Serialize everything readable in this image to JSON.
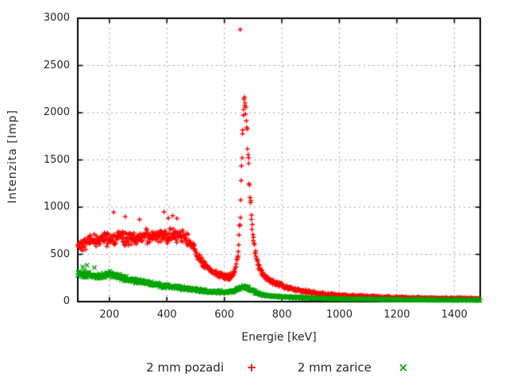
{
  "figure": {
    "background": "#ffffff"
  },
  "legend": {
    "items": [
      {
        "label": "2 mm pozadi",
        "marker": "+",
        "color": "#ff0000"
      },
      {
        "label": "2 mm zarice",
        "marker": "×",
        "color": "#00a400"
      }
    ]
  },
  "chart_data": {
    "type": "scatter",
    "title": "",
    "xlabel": "Energie [keV]",
    "ylabel": "Intenzita [Imp]",
    "xlim": [
      90,
      1490
    ],
    "ylim": [
      0,
      3000
    ],
    "xticks": [
      200,
      400,
      600,
      800,
      1000,
      1200,
      1400
    ],
    "yticks": [
      0,
      500,
      1000,
      1500,
      2000,
      2500,
      3000
    ],
    "grid": true,
    "grid_color": "#9a9a9a",
    "border_color": "#000000",
    "legend_position": "bottom-center",
    "series": [
      {
        "name": "2 mm pozadi",
        "marker": "+",
        "color": "#ff0000",
        "point_step_kev": 1.4,
        "seed": 42,
        "envelope_x_mean_spread": [
          [
            90,
            600,
            85
          ],
          [
            115,
            625,
            85
          ],
          [
            140,
            645,
            85
          ],
          [
            165,
            655,
            88
          ],
          [
            190,
            665,
            90
          ],
          [
            215,
            670,
            90
          ],
          [
            240,
            675,
            90
          ],
          [
            265,
            670,
            88
          ],
          [
            290,
            680,
            90
          ],
          [
            315,
            680,
            92
          ],
          [
            340,
            685,
            92
          ],
          [
            365,
            695,
            92
          ],
          [
            390,
            695,
            95
          ],
          [
            415,
            700,
            92
          ],
          [
            440,
            700,
            88
          ],
          [
            460,
            685,
            80
          ],
          [
            480,
            625,
            70
          ],
          [
            500,
            520,
            60
          ],
          [
            520,
            430,
            52
          ],
          [
            540,
            360,
            46
          ],
          [
            560,
            315,
            40
          ],
          [
            580,
            285,
            37
          ],
          [
            600,
            262,
            34
          ],
          [
            615,
            258,
            34
          ],
          [
            630,
            290,
            38
          ],
          [
            640,
            360,
            45
          ],
          [
            648,
            520,
            60
          ],
          [
            655,
            900,
            100
          ],
          [
            660,
            1400,
            130
          ],
          [
            665,
            1950,
            130
          ],
          [
            669,
            2130,
            100
          ],
          [
            673,
            2080,
            110
          ],
          [
            678,
            1850,
            120
          ],
          [
            684,
            1480,
            120
          ],
          [
            690,
            1120,
            100
          ],
          [
            697,
            800,
            80
          ],
          [
            705,
            560,
            65
          ],
          [
            715,
            410,
            50
          ],
          [
            728,
            315,
            42
          ],
          [
            744,
            258,
            36
          ],
          [
            762,
            220,
            32
          ],
          [
            782,
            190,
            28
          ],
          [
            805,
            162,
            26
          ],
          [
            835,
            135,
            24
          ],
          [
            870,
            112,
            22
          ],
          [
            910,
            93,
            20
          ],
          [
            955,
            78,
            18
          ],
          [
            1005,
            67,
            16
          ],
          [
            1060,
            58,
            15
          ],
          [
            1120,
            50,
            14
          ],
          [
            1185,
            44,
            13
          ],
          [
            1255,
            39,
            12
          ],
          [
            1330,
            35,
            12
          ],
          [
            1410,
            32,
            11
          ],
          [
            1490,
            30,
            11
          ]
        ],
        "outliers": [
          [
            215,
            945
          ],
          [
            255,
            900
          ],
          [
            305,
            870
          ],
          [
            390,
            950
          ],
          [
            405,
            885
          ],
          [
            420,
            910
          ],
          [
            435,
            880
          ],
          [
            655,
            2880
          ]
        ]
      },
      {
        "name": "2 mm zarice",
        "marker": "x",
        "color": "#00a400",
        "point_step_kev": 1.4,
        "seed": 1337,
        "envelope_x_mean_spread": [
          [
            90,
            305,
            45
          ],
          [
            110,
            295,
            43
          ],
          [
            130,
            283,
            41
          ],
          [
            150,
            272,
            40
          ],
          [
            170,
            268,
            40
          ],
          [
            188,
            280,
            41
          ],
          [
            205,
            290,
            41
          ],
          [
            222,
            278,
            39
          ],
          [
            240,
            258,
            37
          ],
          [
            260,
            238,
            35
          ],
          [
            280,
            223,
            33
          ],
          [
            305,
            210,
            31
          ],
          [
            335,
            194,
            29
          ],
          [
            365,
            180,
            28
          ],
          [
            400,
            163,
            26
          ],
          [
            440,
            146,
            24
          ],
          [
            480,
            131,
            22
          ],
          [
            520,
            119,
            21
          ],
          [
            560,
            108,
            20
          ],
          [
            600,
            100,
            19
          ],
          [
            622,
            105,
            19
          ],
          [
            640,
            120,
            20
          ],
          [
            655,
            140,
            21
          ],
          [
            668,
            157,
            22
          ],
          [
            680,
            149,
            21
          ],
          [
            695,
            124,
            19
          ],
          [
            712,
            94,
            16
          ],
          [
            732,
            74,
            14
          ],
          [
            760,
            62,
            13
          ],
          [
            800,
            52,
            12
          ],
          [
            850,
            44,
            11
          ],
          [
            905,
            38,
            10
          ],
          [
            965,
            33,
            9
          ],
          [
            1030,
            29,
            9
          ],
          [
            1100,
            26,
            8
          ],
          [
            1180,
            23,
            8
          ],
          [
            1270,
            20,
            7
          ],
          [
            1370,
            18,
            7
          ],
          [
            1490,
            16,
            7
          ]
        ],
        "outliers": [
          [
            107,
            370
          ],
          [
            122,
            386
          ],
          [
            148,
            360
          ]
        ]
      }
    ]
  }
}
